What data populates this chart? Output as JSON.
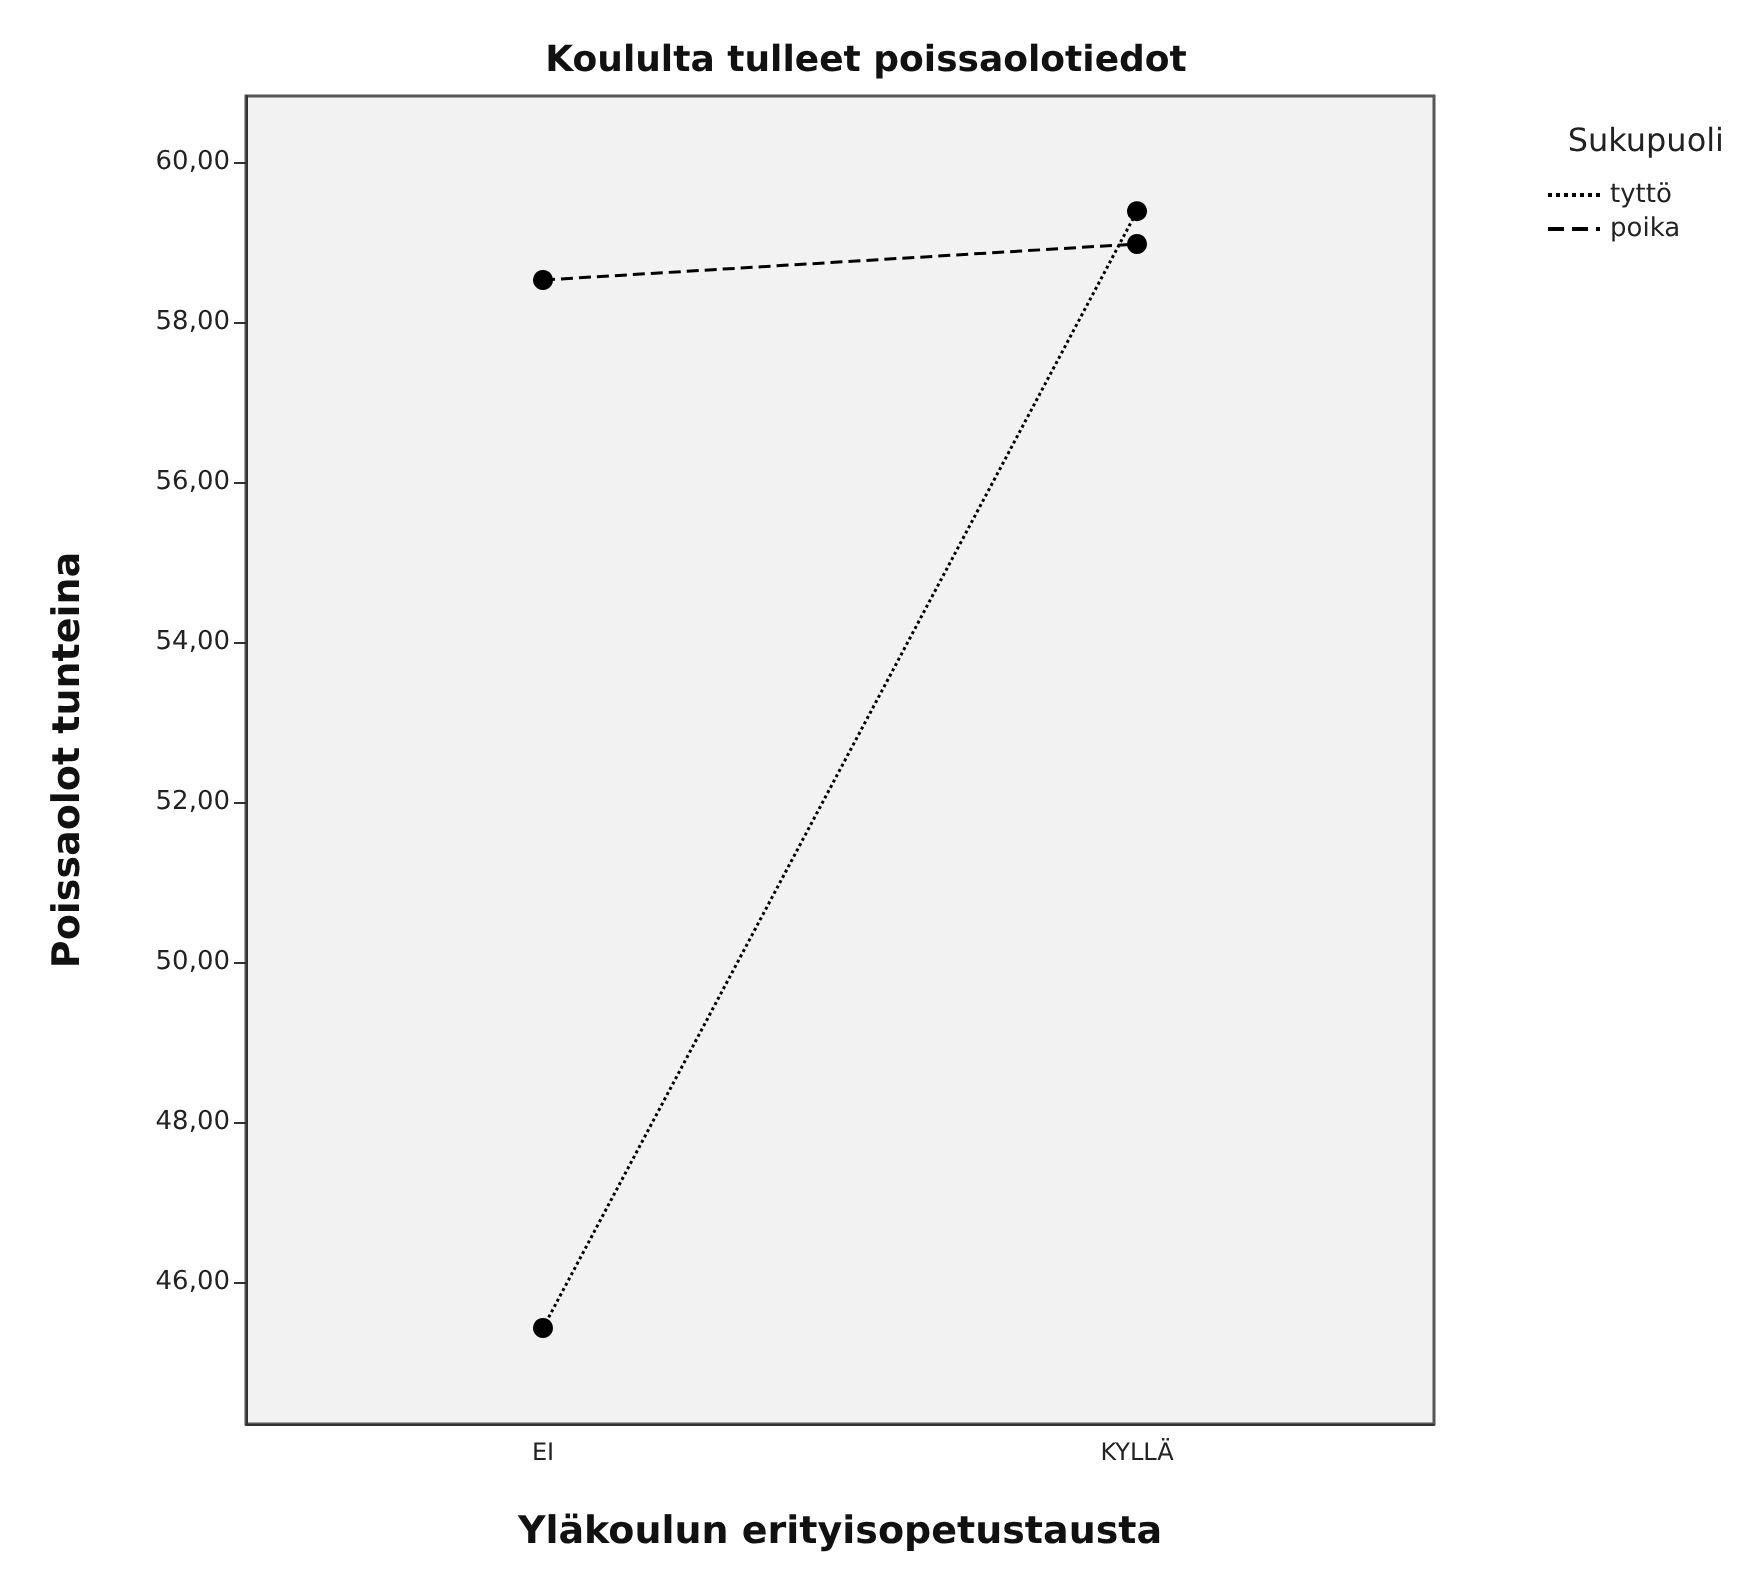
{
  "chart_data": {
    "type": "line",
    "title": "Koululta tulleet poissaolotiedot",
    "xlabel": "Yläkoulun erityisopetustausta",
    "ylabel": "Poissaolot tunteina",
    "legend_title": "Sukupuoli",
    "categories": [
      "EI",
      "KYLLÄ"
    ],
    "series": [
      {
        "name": "tyttö",
        "color": "#000000",
        "line_style": "dotted",
        "values": [
          45.43,
          59.39
        ]
      },
      {
        "name": "poika",
        "color": "#000000",
        "line_style": "dashed",
        "values": [
          58.53,
          58.98
        ]
      }
    ],
    "ylim": [
      44.23,
      60.83
    ],
    "yticks": [
      {
        "value": 46,
        "label": "46,00"
      },
      {
        "value": 48,
        "label": "48,00"
      },
      {
        "value": 50,
        "label": "50,00"
      },
      {
        "value": 52,
        "label": "52,00"
      },
      {
        "value": 54,
        "label": "54,00"
      },
      {
        "value": 56,
        "label": "56,00"
      },
      {
        "value": 58,
        "label": "58,00"
      },
      {
        "value": 60,
        "label": "60,00"
      }
    ],
    "grid": false,
    "legend": "top right",
    "marker": "circle"
  }
}
